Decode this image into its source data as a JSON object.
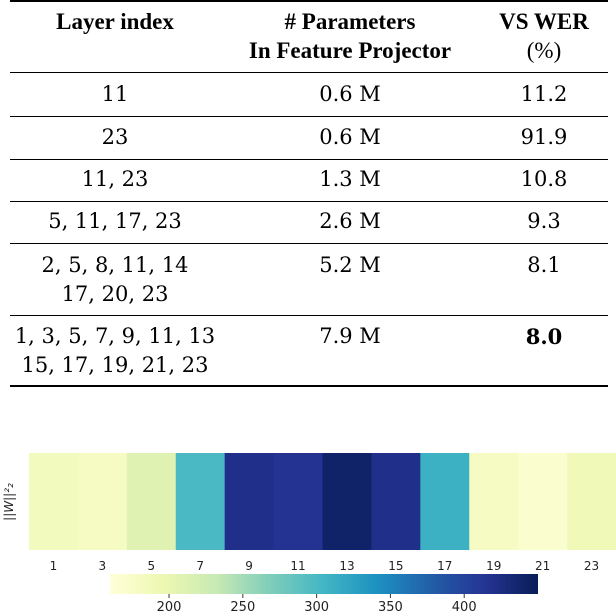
{
  "table": {
    "headers": {
      "layer": "Layer index",
      "params_line1": "# Parameters",
      "params_line2": "In Feature Projector",
      "wer_line1": "VS WER",
      "wer_line2": "(%)"
    },
    "rows": [
      {
        "layers": [
          "11"
        ],
        "params": "0.6 M",
        "wer": "11.2",
        "best": false
      },
      {
        "layers": [
          "23"
        ],
        "params": "0.6 M",
        "wer": "91.9",
        "best": false
      },
      {
        "layers": [
          "11, 23"
        ],
        "params": "1.3 M",
        "wer": "10.8",
        "best": false
      },
      {
        "layers": [
          "5, 11, 17, 23"
        ],
        "params": "2.6 M",
        "wer": "9.3",
        "best": false
      },
      {
        "layers": [
          "2, 5, 8, 11, 14",
          "17, 20, 23"
        ],
        "params": "5.2 M",
        "wer": "8.1",
        "best": false
      },
      {
        "layers": [
          "1, 3, 5, 7, 9, 11, 13",
          "15, 17, 19, 21, 23"
        ],
        "params": "7.9 M",
        "wer": "8.0",
        "best": true
      }
    ]
  },
  "chart_data": {
    "type": "heatmap",
    "ylabel": "||W||²₂",
    "x_ticks": [
      "1",
      "3",
      "5",
      "7",
      "9",
      "11",
      "13",
      "15",
      "17",
      "19",
      "21",
      "23"
    ],
    "values": [
      185,
      180,
      210,
      300,
      420,
      415,
      440,
      420,
      310,
      180,
      170,
      190
    ],
    "colorbar": {
      "ticks": [
        200,
        250,
        300,
        350,
        400
      ],
      "range": [
        160,
        450
      ],
      "colormap": "YlGnBu",
      "stops": [
        "#ffffd9",
        "#edf8b1",
        "#c7e9b4",
        "#7fcdbb",
        "#41b6c4",
        "#1d91c0",
        "#225ea8",
        "#253494",
        "#081d58"
      ]
    }
  }
}
